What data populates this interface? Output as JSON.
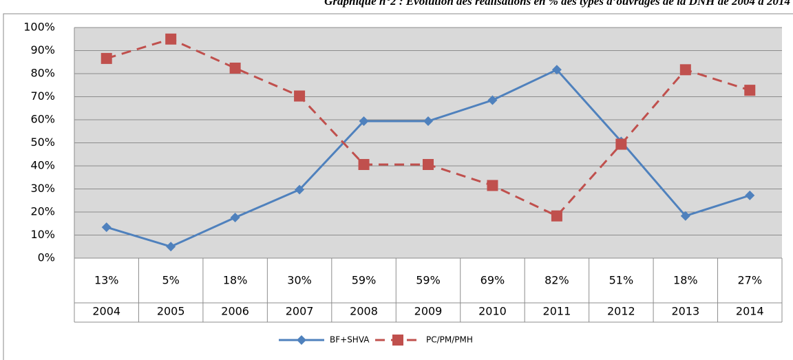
{
  "chart_data": {
    "type": "line",
    "title": "Graphique n°2 : Evolution des réalisations en % des types d’ouvrages de la DNH de 2004 à 2014",
    "categories": [
      "2004",
      "2005",
      "2006",
      "2007",
      "2008",
      "2009",
      "2010",
      "2011",
      "2012",
      "2013",
      "2014"
    ],
    "series": [
      {
        "name": "BF+SHVA",
        "color": "#4f81bd",
        "marker": "diamond",
        "dashed": false,
        "values": [
          13.4,
          5,
          17.6,
          29.7,
          59.4,
          59.4,
          68.5,
          81.7,
          50.6,
          18.3,
          27.2
        ],
        "value_labels": [
          "13%",
          "5%",
          "18%",
          "30%",
          "59%",
          "59%",
          "69%",
          "82%",
          "51%",
          "18%",
          "27%"
        ]
      },
      {
        "name": "PC/PM/PMH",
        "color": "#c0504d",
        "marker": "square",
        "dashed": true,
        "values": [
          86.6,
          95,
          82.4,
          70.3,
          40.6,
          40.6,
          31.5,
          18.3,
          49.4,
          81.7,
          72.8
        ]
      }
    ],
    "ylim": [
      0,
      100
    ],
    "yticks": [
      {
        "value": 0,
        "label": "0%"
      },
      {
        "value": 10,
        "label": "10%"
      },
      {
        "value": 20,
        "label": "20%"
      },
      {
        "value": 30,
        "label": "30%"
      },
      {
        "value": 40,
        "label": "40%"
      },
      {
        "value": 50,
        "label": "50%"
      },
      {
        "value": 60,
        "label": "60%"
      },
      {
        "value": 70,
        "label": "70%"
      },
      {
        "value": 80,
        "label": "80%"
      },
      {
        "value": 90,
        "label": "90%"
      },
      {
        "value": 100,
        "label": "100%"
      }
    ],
    "grid": true,
    "legend": "bottom"
  }
}
